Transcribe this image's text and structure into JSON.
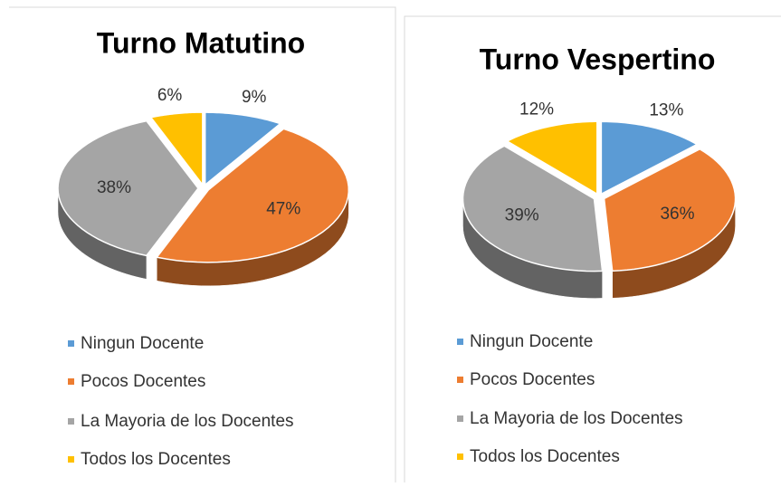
{
  "chart_data": [
    {
      "type": "pie",
      "title": "Turno Matutino",
      "categories": [
        "Ningun Docente",
        "Pocos Docentes",
        "La Mayoria de los Docentes",
        "Todos los Docentes"
      ],
      "values": [
        9,
        47,
        38,
        6
      ],
      "value_labels": [
        "9%",
        "47%",
        "38%",
        "6%"
      ],
      "colors": [
        "#5b9bd5",
        "#ed7d31",
        "#a5a5a5",
        "#ffc000"
      ],
      "legend": "bottom"
    },
    {
      "type": "pie",
      "title": "Turno Vespertino",
      "categories": [
        "Ningun Docente",
        "Pocos Docentes",
        "La Mayoria de los Docentes",
        "Todos los Docentes"
      ],
      "values": [
        13,
        36,
        39,
        12
      ],
      "value_labels": [
        "13%",
        "36%",
        "39%",
        "12%"
      ],
      "colors": [
        "#5b9bd5",
        "#ed7d31",
        "#a5a5a5",
        "#ffc000"
      ],
      "legend": "bottom"
    }
  ]
}
